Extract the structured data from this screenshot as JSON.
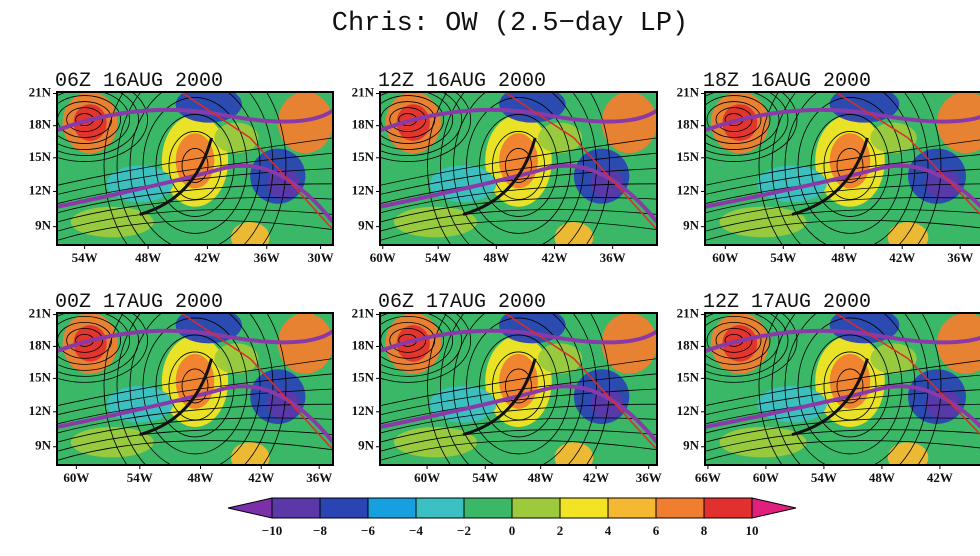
{
  "title": "Chris: OW (2.5−day LP)",
  "panels": [
    {
      "title": "06Z 16AUG 2000",
      "lat_labels": [
        "21N",
        "18N",
        "15N",
        "12N",
        "9N"
      ],
      "lon_labels": [
        "54W",
        "48W",
        "42W",
        "36W",
        "30W"
      ]
    },
    {
      "title": "12Z 16AUG 2000",
      "lat_labels": [
        "21N",
        "18N",
        "15N",
        "12N",
        "9N"
      ],
      "lon_labels": [
        "60W",
        "54W",
        "48W",
        "42W",
        "36W"
      ]
    },
    {
      "title": "18Z 16AUG 2000",
      "lat_labels": [
        "21N",
        "18N",
        "15N",
        "12N",
        "9N"
      ],
      "lon_labels": [
        "60W",
        "54W",
        "48W",
        "42W",
        "36W"
      ]
    },
    {
      "title": "00Z 17AUG 2000",
      "lat_labels": [
        "21N",
        "18N",
        "15N",
        "12N",
        "9N"
      ],
      "lon_labels": [
        "60W",
        "54W",
        "48W",
        "42W",
        "36W"
      ]
    },
    {
      "title": "06Z 17AUG 2000",
      "lat_labels": [
        "21N",
        "18N",
        "15N",
        "12N",
        "9N"
      ],
      "lon_labels": [
        "60W",
        "54W",
        "48W",
        "42W",
        "36W"
      ]
    },
    {
      "title": "12Z 17AUG 2000",
      "lat_labels": [
        "21N",
        "18N",
        "15N",
        "12N",
        "9N"
      ],
      "lon_labels": [
        "66W",
        "60W",
        "54W",
        "48W",
        "42W"
      ]
    }
  ],
  "colorbar": {
    "labels": [
      "−10",
      "−8",
      "−6",
      "−4",
      "−2",
      "0",
      "2",
      "4",
      "6",
      "8",
      "10"
    ],
    "colors": [
      "#7b2fa8",
      "#5a38a8",
      "#2a44b4",
      "#16a0e0",
      "#3cc0c4",
      "#3ab868",
      "#9cca3c",
      "#f2e424",
      "#f5b832",
      "#f07e30",
      "#e2302e",
      "#e0207c"
    ]
  }
}
